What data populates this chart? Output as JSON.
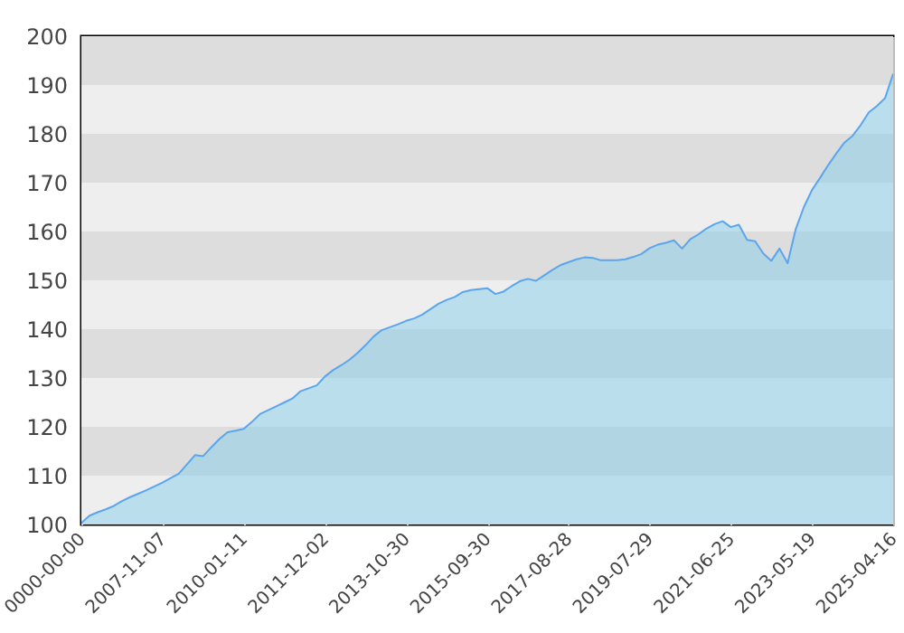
{
  "chart_data": {
    "type": "area",
    "categories": [
      "0000-00-00",
      null,
      null,
      null,
      null,
      null,
      null,
      null,
      null,
      null,
      "2007-11-07",
      null,
      null,
      null,
      null,
      null,
      null,
      null,
      null,
      null,
      "2010-01-11",
      null,
      null,
      null,
      null,
      null,
      null,
      null,
      null,
      null,
      "2011-12-02",
      null,
      null,
      null,
      null,
      null,
      null,
      null,
      null,
      null,
      "2013-10-30",
      null,
      null,
      null,
      null,
      null,
      null,
      null,
      null,
      null,
      "2015-09-30",
      null,
      null,
      null,
      null,
      null,
      null,
      null,
      null,
      null,
      "2017-08-28",
      null,
      null,
      null,
      null,
      null,
      null,
      null,
      null,
      null,
      "2019-07-29",
      null,
      null,
      null,
      null,
      null,
      null,
      null,
      null,
      null,
      "2021-06-25",
      null,
      null,
      null,
      null,
      null,
      null,
      null,
      null,
      null,
      "2023-05-19",
      null,
      null,
      null,
      null,
      null,
      null,
      null,
      null,
      null,
      "2025-04-16"
    ],
    "series": [
      {
        "color": "#5aa5ee",
        "values": [
          100.3,
          101.8,
          102.5,
          103.1,
          103.8,
          104.8,
          105.6,
          106.3,
          107.0,
          107.8,
          108.6,
          109.5,
          110.4,
          112.3,
          114.2,
          114.0,
          115.8,
          117.5,
          118.9,
          119.2,
          119.6,
          121.0,
          122.6,
          123.4,
          124.2,
          125.0,
          125.8,
          127.3,
          127.9,
          128.5,
          130.3,
          131.6,
          132.6,
          133.7,
          135.1,
          136.7,
          138.5,
          139.8,
          140.4,
          141.0,
          141.7,
          142.2,
          143.0,
          144.1,
          145.2,
          146.0,
          146.6,
          147.6,
          148.0,
          148.2,
          148.4,
          147.2,
          147.7,
          148.8,
          149.8,
          150.3,
          149.9,
          151.0,
          152.1,
          153.1,
          153.7,
          154.3,
          154.7,
          154.6,
          154.1,
          154.1,
          154.1,
          154.3,
          154.8,
          155.4,
          156.6,
          157.3,
          157.7,
          158.2,
          156.5,
          158.4,
          159.4,
          160.6,
          161.5,
          162.1,
          160.9,
          161.4,
          158.3,
          158.0,
          155.5,
          154.0,
          156.5,
          153.5,
          160.5,
          165.0,
          168.5,
          171.0,
          173.6,
          176.0,
          178.2,
          179.6,
          181.8,
          184.4,
          185.7,
          187.3,
          192.3
        ]
      }
    ],
    "ylim": [
      100,
      200
    ],
    "yticks": [
      100,
      110,
      120,
      130,
      140,
      150,
      160,
      170,
      180,
      190,
      200
    ],
    "grid": true
  }
}
